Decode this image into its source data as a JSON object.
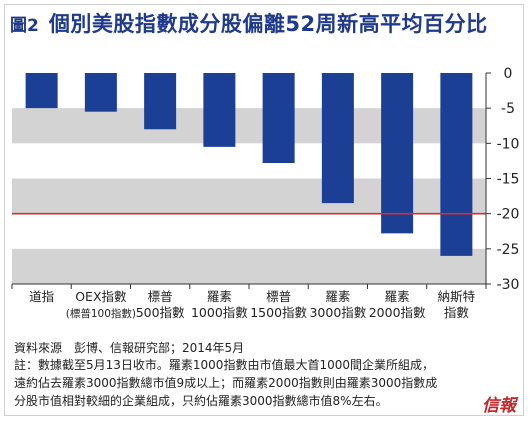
{
  "figure_label": "圖2",
  "logo_text": "信報",
  "source": "資料來源　彭博、信報研究部；2014年5月",
  "notes": [
    "註：數據截至5月13日收市。羅素1000指數由市值最大首1000間企業所組成，",
    "遠約佔去羅素3000指數總市值9成以上；而羅素2000指數則由羅素3000指數成",
    "分股市值相對較細的企業組成，只約佔羅素3000指數總市值8%左右。"
  ],
  "colors": {
    "bar": "#1b3f94",
    "band": "#d3d3d3",
    "refline": "#d32f2f",
    "title": "#1f3a8a"
  },
  "chart_data": {
    "type": "bar",
    "title": "個別美股指數成分股偏離52周新高平均百分比",
    "xlabel": "",
    "ylabel": "",
    "categories": [
      [
        "道指"
      ],
      [
        "OEX指數",
        "(標普100指數)"
      ],
      [
        "標普",
        "500指數"
      ],
      [
        "羅素",
        "1000指數"
      ],
      [
        "標普",
        "1500指數"
      ],
      [
        "羅素",
        "3000指數"
      ],
      [
        "羅素",
        "2000指數"
      ],
      [
        "納斯特",
        "指數"
      ]
    ],
    "values": [
      -5.0,
      -5.5,
      -8.0,
      -10.5,
      -12.8,
      -18.5,
      -22.8,
      -26.0
    ],
    "ylim": [
      -30,
      0
    ],
    "yticks": [
      0,
      -5,
      -10,
      -15,
      -20,
      -25,
      -30
    ],
    "axis_position": "right",
    "reference_line": -20,
    "grid": false,
    "legend": "none"
  }
}
